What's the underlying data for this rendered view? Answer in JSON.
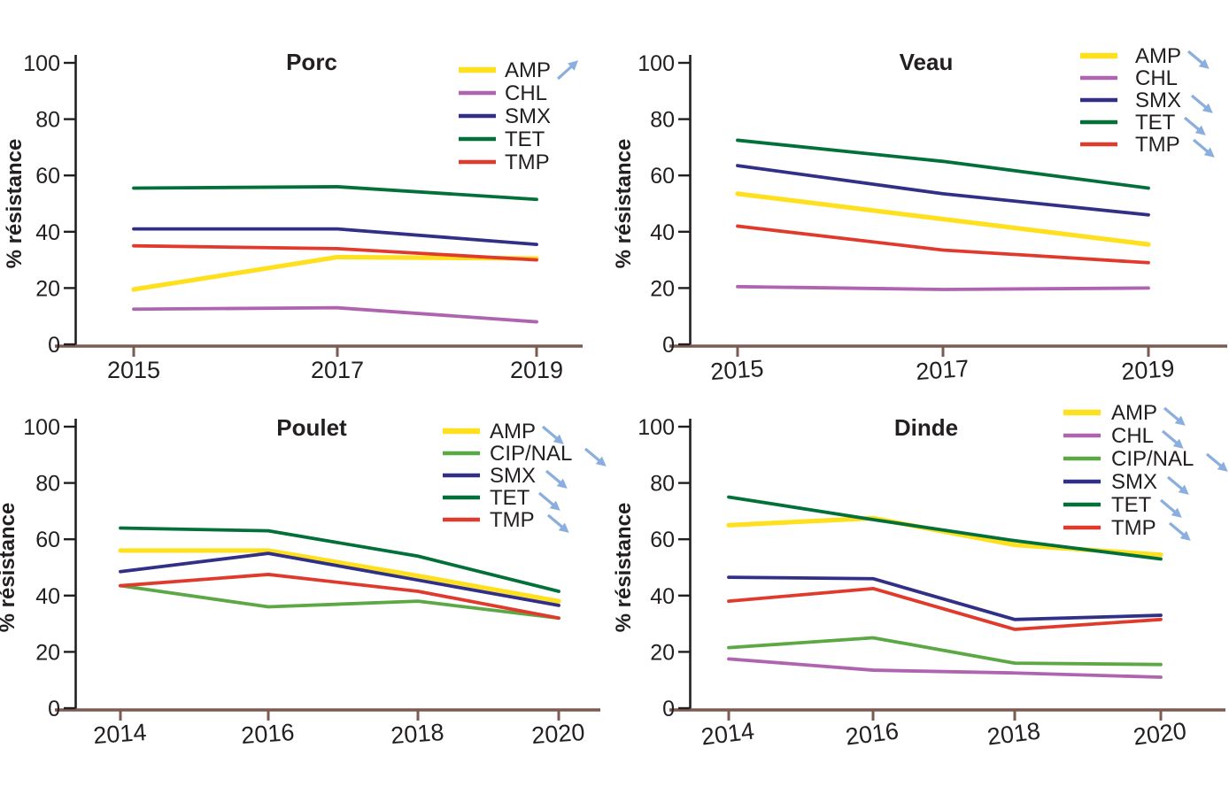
{
  "figure": {
    "ylabel": "% résistance",
    "y_ticks": [
      0,
      20,
      40,
      60,
      80,
      100
    ],
    "colors": {
      "AMP": "#FFE01E",
      "CHL": "#AF64AF",
      "CIP/NAL": "#5BA845",
      "SMX": "#322F87",
      "TET": "#047039",
      "TMP": "#E03A2C"
    },
    "arrow_color": "#8AAEDD",
    "axis_x_color": "#7B5B51",
    "axis_y_color": "#231F20",
    "text_color": "#231F20"
  },
  "chart_data": [
    {
      "type": "line",
      "title": "Porc",
      "x": [
        2015,
        2017,
        2019
      ],
      "xlabel": "",
      "ylabel": "% résistance",
      "ylim": [
        0,
        100
      ],
      "grid": false,
      "legend_position": "top-right",
      "series": [
        {
          "name": "AMP",
          "values": [
            19.5,
            31,
            30.5
          ],
          "trend": "increasing"
        },
        {
          "name": "CHL",
          "values": [
            12.5,
            13,
            8
          ],
          "trend": null
        },
        {
          "name": "SMX",
          "values": [
            41,
            41,
            35.5
          ],
          "trend": null
        },
        {
          "name": "TET",
          "values": [
            55.5,
            56,
            51.5
          ],
          "trend": null
        },
        {
          "name": "TMP",
          "values": [
            35,
            34,
            30
          ],
          "trend": null
        }
      ]
    },
    {
      "type": "line",
      "title": "Veau",
      "x": [
        2015,
        2017,
        2019
      ],
      "xlabel": "",
      "ylabel": "% résistance",
      "ylim": [
        0,
        100
      ],
      "grid": false,
      "legend_position": "top-right",
      "series": [
        {
          "name": "AMP",
          "values": [
            53.5,
            44.5,
            35.5
          ],
          "trend": "decreasing"
        },
        {
          "name": "CHL",
          "values": [
            20.5,
            19.5,
            20
          ],
          "trend": null
        },
        {
          "name": "SMX",
          "values": [
            63.5,
            53.5,
            46
          ],
          "trend": "decreasing"
        },
        {
          "name": "TET",
          "values": [
            72.5,
            65,
            55.5
          ],
          "trend": "decreasing"
        },
        {
          "name": "TMP",
          "values": [
            42,
            33.5,
            29
          ],
          "trend": "decreasing"
        }
      ]
    },
    {
      "type": "line",
      "title": "Poulet",
      "x": [
        2014,
        2016,
        2018,
        2020
      ],
      "xlabel": "",
      "ylabel": "% résistance",
      "ylim": [
        0,
        100
      ],
      "grid": false,
      "legend_position": "top-right",
      "series": [
        {
          "name": "AMP",
          "values": [
            56,
            56,
            47,
            38
          ],
          "trend": "decreasing"
        },
        {
          "name": "CIP/NAL",
          "values": [
            43.5,
            36,
            38,
            32
          ],
          "trend": "decreasing"
        },
        {
          "name": "SMX",
          "values": [
            48.5,
            55,
            45.5,
            36.5
          ],
          "trend": "decreasing"
        },
        {
          "name": "TET",
          "values": [
            64,
            63,
            54,
            41.5
          ],
          "trend": "decreasing"
        },
        {
          "name": "TMP",
          "values": [
            43.5,
            47.5,
            41.5,
            32
          ],
          "trend": "decreasing"
        }
      ]
    },
    {
      "type": "line",
      "title": "Dinde",
      "x": [
        2014,
        2016,
        2018,
        2020
      ],
      "xlabel": "",
      "ylabel": "% résistance",
      "ylim": [
        0,
        100
      ],
      "grid": false,
      "legend_position": "top-right",
      "series": [
        {
          "name": "AMP",
          "values": [
            65,
            67.5,
            58,
            54.5
          ],
          "trend": "decreasing"
        },
        {
          "name": "CHL",
          "values": [
            17.5,
            13.5,
            12.5,
            11
          ],
          "trend": "decreasing"
        },
        {
          "name": "CIP/NAL",
          "values": [
            21.5,
            25,
            16,
            15.5
          ],
          "trend": "decreasing"
        },
        {
          "name": "SMX",
          "values": [
            46.5,
            46,
            31.5,
            33
          ],
          "trend": "decreasing"
        },
        {
          "name": "TET",
          "values": [
            75,
            67,
            59.5,
            53
          ],
          "trend": "decreasing"
        },
        {
          "name": "TMP",
          "values": [
            38,
            42.5,
            28,
            31.5
          ],
          "trend": "decreasing"
        }
      ]
    }
  ]
}
